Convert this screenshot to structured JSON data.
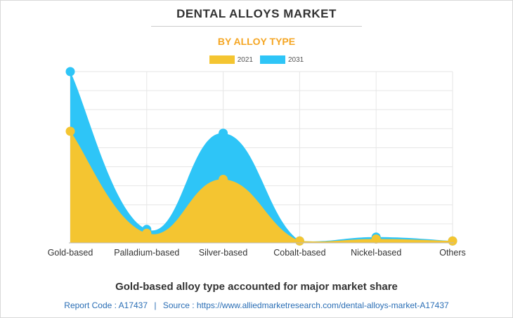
{
  "chart_data": {
    "type": "area",
    "title": "DENTAL ALLOYS MARKET",
    "subtitle": "BY ALLOY TYPE",
    "categories": [
      "Gold-based",
      "Palladium-based",
      "Silver-based",
      "Cobalt-based",
      "Nickel-based",
      "Others"
    ],
    "series": [
      {
        "name": "2021",
        "color": "#f4c531",
        "values": [
          58,
          5,
          33,
          1,
          2,
          1
        ]
      },
      {
        "name": "2031",
        "color": "#2ec5f7",
        "values": [
          89,
          7,
          57,
          1,
          3,
          1
        ]
      }
    ],
    "ylim": [
      0,
      89
    ],
    "grid": true,
    "legend_position": "top-center"
  },
  "caption": "Gold-based alloy type accounted for major market share",
  "footer": {
    "report_code": "Report Code : A17437",
    "separator": "|",
    "source": "Source : https://www.alliedmarketresearch.com/dental-alloys-market-A17437"
  }
}
